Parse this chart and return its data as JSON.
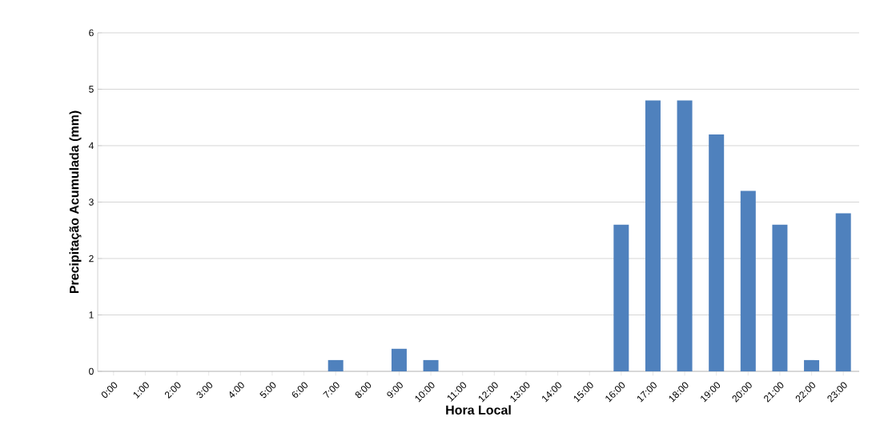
{
  "chart_data": {
    "type": "bar",
    "xlabel": "Hora Local",
    "ylabel": "Precipitação Acumulada (mm)",
    "categories": [
      "0:00",
      "1:00",
      "2:00",
      "3:00",
      "4:00",
      "5:00",
      "6:00",
      "7:00",
      "8:00",
      "9:00",
      "10:00",
      "11:00",
      "12:00",
      "13:00",
      "14:00",
      "15:00",
      "16:00",
      "17:00",
      "18:00",
      "19:00",
      "20:00",
      "21:00",
      "22:00",
      "23:00"
    ],
    "values": [
      0,
      0,
      0,
      0,
      0,
      0,
      0,
      0.2,
      0,
      0.4,
      0.2,
      0,
      0,
      0,
      0,
      0,
      2.6,
      4.8,
      4.8,
      4.2,
      3.2,
      2.6,
      0.2,
      2.8
    ],
    "color": "#4f81bd",
    "ylim": [
      0,
      6
    ],
    "yticks": [
      0,
      1,
      2,
      3,
      4,
      5,
      6
    ],
    "grid": "y"
  }
}
